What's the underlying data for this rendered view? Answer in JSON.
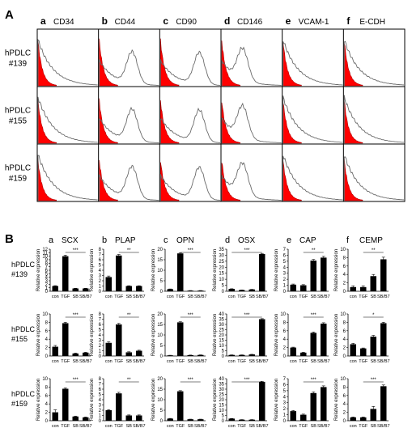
{
  "panelA": {
    "letter": "A",
    "columns": [
      {
        "letter": "a",
        "marker": "CD34",
        "overlay": [
          0,
          0
        ]
      },
      {
        "letter": "b",
        "marker": "CD44",
        "overlay": [
          0.55,
          0.55
        ]
      },
      {
        "letter": "c",
        "marker": "CD90",
        "overlay": [
          0.65,
          0.55
        ]
      },
      {
        "letter": "d",
        "marker": "CD146",
        "overlay": [
          0.35,
          0.55
        ]
      },
      {
        "letter": "e",
        "marker": "VCAM-1",
        "overlay": [
          0,
          0
        ]
      },
      {
        "letter": "f",
        "marker": "E-CDH",
        "overlay": [
          0,
          0
        ]
      }
    ],
    "rows": [
      {
        "line1": "hPDLC",
        "line2": "#139",
        "var": 0
      },
      {
        "line1": "hPDLC",
        "line2": "#155",
        "var": 1
      },
      {
        "line1": "hPDLC",
        "line2": "#159",
        "var": 2
      }
    ],
    "colors": {
      "control_fill": "#ff0000",
      "control_stroke": "#b00000",
      "marker_line": "#6a6a6a"
    }
  },
  "panelB": {
    "letter": "B",
    "ylabel": "Relative expression",
    "categories": [
      "con",
      "TGF",
      "SB",
      "SB/B7"
    ],
    "columns": [
      {
        "letter": "a",
        "gene": "SCX"
      },
      {
        "letter": "b",
        "gene": "PLAP"
      },
      {
        "letter": "c",
        "gene": "OPN"
      },
      {
        "letter": "d",
        "gene": "OSX"
      },
      {
        "letter": "e",
        "gene": "CAP"
      },
      {
        "letter": "f",
        "gene": "CEMP"
      }
    ],
    "rows": [
      {
        "line1": "hPDLC",
        "line2": "#139"
      },
      {
        "line1": "hPDLC",
        "line2": "#155"
      },
      {
        "line1": "hPDLC",
        "line2": "#159"
      }
    ]
  },
  "chart_data": [
    {
      "type": "bar",
      "row": "hPDLC #139",
      "gene": "SCX",
      "categories": [
        "con",
        "TGF",
        "SB",
        "SB/B7"
      ],
      "values": [
        1.5,
        10,
        0.8,
        0.8
      ],
      "errors": [
        0.1,
        0.3,
        0.05,
        0.05
      ],
      "ylim": [
        0,
        12
      ],
      "yticks": [
        0,
        1,
        2,
        3,
        4,
        5,
        6,
        7,
        8,
        9,
        10,
        11,
        12
      ],
      "sig": {
        "label": "***",
        "from": 1,
        "to": 3
      }
    },
    {
      "type": "bar",
      "row": "hPDLC #139",
      "gene": "PLAP",
      "categories": [
        "con",
        "TGF",
        "SB",
        "SB/B7"
      ],
      "values": [
        2.7,
        6.8,
        1.0,
        1.0
      ],
      "errors": [
        0.2,
        0.2,
        0.05,
        0.05
      ],
      "ylim": [
        0,
        8
      ],
      "yticks": [
        0,
        1,
        2,
        3,
        4,
        5,
        6,
        7,
        8
      ],
      "sig": {
        "label": "**",
        "from": 1,
        "to": 3
      }
    },
    {
      "type": "bar",
      "row": "hPDLC #139",
      "gene": "OPN",
      "categories": [
        "con",
        "TGF",
        "SB",
        "SB/B7"
      ],
      "values": [
        1.0,
        18,
        0.3,
        0.3
      ],
      "errors": [
        0.1,
        0.3,
        0.05,
        0.05
      ],
      "ylim": [
        0,
        20
      ],
      "yticks": [
        0,
        5,
        10,
        15,
        20
      ],
      "sig": {
        "label": "***",
        "from": 1,
        "to": 3
      }
    },
    {
      "type": "bar",
      "row": "hPDLC #139",
      "gene": "OSX",
      "categories": [
        "con",
        "TGF",
        "SB",
        "SB/B7"
      ],
      "values": [
        2,
        1,
        1.5,
        31
      ],
      "errors": [
        0.1,
        0.1,
        0.1,
        0.5
      ],
      "ylim": [
        0,
        35
      ],
      "yticks": [
        0,
        5,
        10,
        15,
        20,
        25,
        30,
        35
      ],
      "sig": {
        "label": "***",
        "from": 0,
        "to": 3
      }
    },
    {
      "type": "bar",
      "row": "hPDLC #139",
      "gene": "CAP",
      "categories": [
        "con",
        "TGF",
        "SB",
        "SB/B7"
      ],
      "values": [
        1.1,
        1.0,
        5.1,
        5.6
      ],
      "errors": [
        0.1,
        0.1,
        0.2,
        0.2
      ],
      "ylim": [
        0,
        7
      ],
      "yticks": [
        0,
        1,
        2,
        3,
        4,
        5,
        6,
        7
      ],
      "sig": {
        "label": "**",
        "from": 1,
        "to": 3
      }
    },
    {
      "type": "bar",
      "row": "hPDLC #139",
      "gene": "CEMP",
      "categories": [
        "con",
        "TGF",
        "SB",
        "SB/B7"
      ],
      "values": [
        1.0,
        1.0,
        3.6,
        7.6
      ],
      "errors": [
        0.3,
        0.3,
        0.4,
        0.5
      ],
      "ylim": [
        0,
        10
      ],
      "yticks": [
        0,
        2,
        4,
        6,
        8,
        10
      ],
      "sig": {
        "label": "**",
        "from": 1,
        "to": 3
      }
    },
    {
      "type": "bar",
      "row": "hPDLC #155",
      "gene": "SCX",
      "categories": [
        "con",
        "TGF",
        "SB",
        "SB/B7"
      ],
      "values": [
        2.2,
        7.8,
        0.6,
        0.8
      ],
      "errors": [
        0.3,
        0.2,
        0.1,
        0.1
      ],
      "ylim": [
        0,
        10
      ],
      "yticks": [
        0,
        2,
        4,
        6,
        8,
        10
      ],
      "sig": {
        "label": "***",
        "from": 1,
        "to": 3
      }
    },
    {
      "type": "bar",
      "row": "hPDLC #155",
      "gene": "PLAP",
      "categories": [
        "con",
        "TGF",
        "SB",
        "SB/B7"
      ],
      "values": [
        2.5,
        6.0,
        0.7,
        1.0
      ],
      "errors": [
        0.2,
        0.2,
        0.1,
        0.1
      ],
      "ylim": [
        0,
        8
      ],
      "yticks": [
        0,
        1,
        2,
        3,
        4,
        5,
        6,
        7,
        8
      ],
      "sig": {
        "label": "**",
        "from": 1,
        "to": 3
      }
    },
    {
      "type": "bar",
      "row": "hPDLC #155",
      "gene": "OPN",
      "categories": [
        "con",
        "TGF",
        "SB",
        "SB/B7"
      ],
      "values": [
        0.3,
        16,
        0.4,
        0.5
      ],
      "errors": [
        0.05,
        0.3,
        0.05,
        0.05
      ],
      "ylim": [
        0,
        20
      ],
      "yticks": [
        0,
        5,
        10,
        15,
        20
      ],
      "sig": {
        "label": "***",
        "from": 1,
        "to": 3
      }
    },
    {
      "type": "bar",
      "row": "hPDLC #155",
      "gene": "OSX",
      "categories": [
        "con",
        "TGF",
        "SB",
        "SB/B7"
      ],
      "values": [
        1,
        1,
        1.5,
        35
      ],
      "errors": [
        0.1,
        0.1,
        0.1,
        0.5
      ],
      "ylim": [
        0,
        40
      ],
      "yticks": [
        0,
        5,
        10,
        15,
        20,
        25,
        30,
        35,
        40
      ],
      "sig": {
        "label": "***",
        "from": 0,
        "to": 3
      }
    },
    {
      "type": "bar",
      "row": "hPDLC #155",
      "gene": "CAP",
      "categories": [
        "con",
        "TGF",
        "SB",
        "SB/B7"
      ],
      "values": [
        2.0,
        0.8,
        5.5,
        7.7
      ],
      "errors": [
        0.1,
        0.1,
        0.2,
        0.2
      ],
      "ylim": [
        0,
        10
      ],
      "yticks": [
        0,
        2,
        4,
        6,
        8,
        10
      ],
      "sig": {
        "label": "***",
        "from": 1,
        "to": 3
      }
    },
    {
      "type": "bar",
      "row": "hPDLC #155",
      "gene": "CEMP",
      "categories": [
        "con",
        "TGF",
        "SB",
        "SB/B7"
      ],
      "values": [
        2.8,
        1.8,
        4.6,
        7.8
      ],
      "errors": [
        0.2,
        0.1,
        0.3,
        0.2
      ],
      "ylim": [
        0,
        10
      ],
      "yticks": [
        0,
        2,
        4,
        6,
        8,
        10
      ],
      "sig": {
        "label": "*",
        "from": 1,
        "to": 3
      }
    },
    {
      "type": "bar",
      "row": "hPDLC #159",
      "gene": "SCX",
      "categories": [
        "con",
        "TGF",
        "SB",
        "SB/B7"
      ],
      "values": [
        2.0,
        7.6,
        1.0,
        0.8
      ],
      "errors": [
        0.6,
        0.2,
        0.1,
        0.1
      ],
      "ylim": [
        0,
        10
      ],
      "yticks": [
        0,
        2,
        4,
        6,
        8,
        10
      ],
      "sig": {
        "label": "***",
        "from": 1,
        "to": 3
      }
    },
    {
      "type": "bar",
      "row": "hPDLC #159",
      "gene": "PLAP",
      "categories": [
        "con",
        "TGF",
        "SB",
        "SB/B7"
      ],
      "values": [
        2.0,
        5.2,
        1.0,
        1.0
      ],
      "errors": [
        0.1,
        0.2,
        0.1,
        0.1
      ],
      "ylim": [
        0,
        8
      ],
      "yticks": [
        0,
        1,
        2,
        3,
        4,
        5,
        6,
        7,
        8
      ],
      "sig": {
        "label": "**",
        "from": 1,
        "to": 3
      }
    },
    {
      "type": "bar",
      "row": "hPDLC #159",
      "gene": "OPN",
      "categories": [
        "con",
        "TGF",
        "SB",
        "SB/B7"
      ],
      "values": [
        1.0,
        14,
        0.7,
        0.7
      ],
      "errors": [
        0.1,
        0.3,
        0.05,
        0.05
      ],
      "ylim": [
        0,
        20
      ],
      "yticks": [
        0,
        5,
        10,
        15,
        20
      ],
      "sig": {
        "label": "***",
        "from": 1,
        "to": 3
      }
    },
    {
      "type": "bar",
      "row": "hPDLC #159",
      "gene": "OSX",
      "categories": [
        "con",
        "TGF",
        "SB",
        "SB/B7"
      ],
      "values": [
        2,
        1,
        1,
        37
      ],
      "errors": [
        0.1,
        0.1,
        0.1,
        0.5
      ],
      "ylim": [
        0,
        40
      ],
      "yticks": [
        0,
        5,
        10,
        15,
        20,
        25,
        30,
        35,
        40
      ],
      "sig": {
        "label": "***",
        "from": 0,
        "to": 3
      }
    },
    {
      "type": "bar",
      "row": "hPDLC #159",
      "gene": "CAP",
      "categories": [
        "con",
        "TGF",
        "SB",
        "SB/B7"
      ],
      "values": [
        1.6,
        1.0,
        4.6,
        5.6
      ],
      "errors": [
        0.1,
        0.1,
        0.2,
        0.2
      ],
      "ylim": [
        0,
        7
      ],
      "yticks": [
        0,
        1,
        2,
        3,
        4,
        5,
        6,
        7
      ],
      "sig": {
        "label": "***",
        "from": 1,
        "to": 3
      }
    },
    {
      "type": "bar",
      "row": "hPDLC #159",
      "gene": "CEMP",
      "categories": [
        "con",
        "TGF",
        "SB",
        "SB/B7"
      ],
      "values": [
        0.8,
        0.8,
        2.8,
        8.2
      ],
      "errors": [
        0.1,
        0.1,
        0.6,
        0.3
      ],
      "ylim": [
        0,
        10
      ],
      "yticks": [
        0,
        2,
        4,
        6,
        8,
        10
      ],
      "sig": {
        "label": "***",
        "from": 1,
        "to": 3
      }
    }
  ]
}
